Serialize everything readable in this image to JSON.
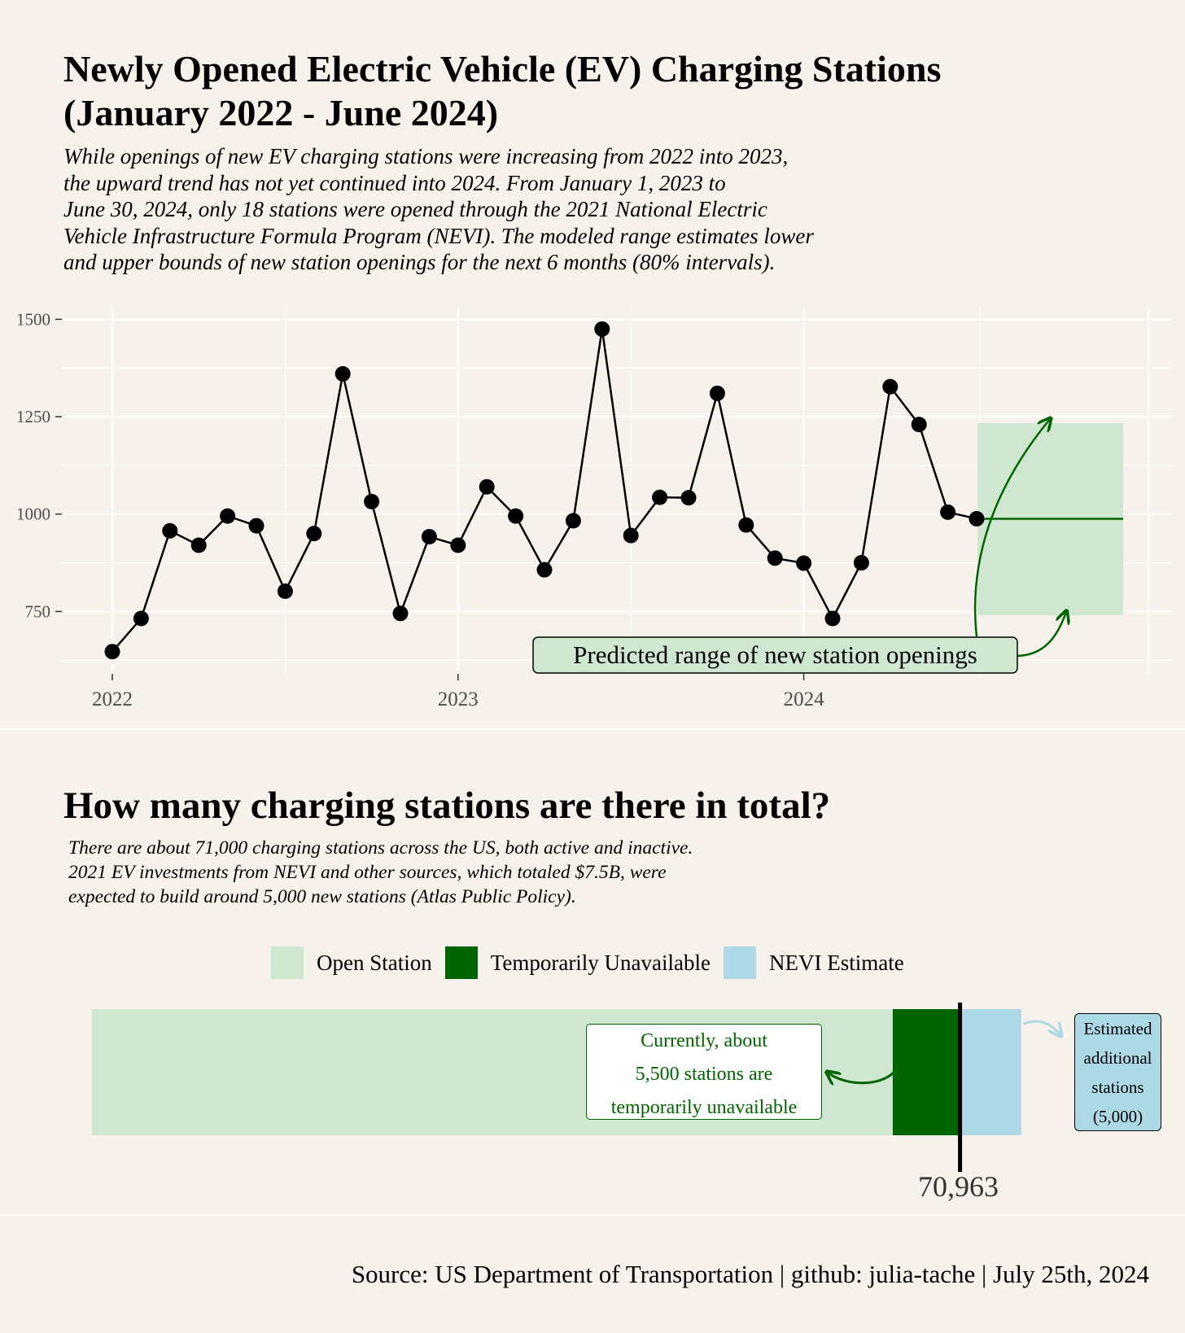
{
  "chart_title_lines": [
    "Newly Opened Electric Vehicle (EV) Charging Stations",
    "(January 2022 - June 2024)"
  ],
  "chart_subtitle_lines": [
    "While openings of new EV charging stations were increasing from 2022 into 2023,",
    "the upward trend has not yet continued into 2024. From January 1, 2023 to",
    "June 30, 2024, only 18 stations were opened through the 2021 National Electric",
    "Vehicle Infrastructure Formula Program (NEVI). The modeled range estimates lower",
    "and upper bounds of new station openings for the next 6 months (80% intervals)."
  ],
  "chart_data": [
    {
      "type": "line",
      "title": "Newly Opened Electric Vehicle (EV) Charging Stations (January 2022 - June 2024)",
      "xlabel": "",
      "ylabel": "",
      "x": [
        "2022-01",
        "2022-02",
        "2022-03",
        "2022-04",
        "2022-05",
        "2022-06",
        "2022-07",
        "2022-08",
        "2022-09",
        "2022-10",
        "2022-11",
        "2022-12",
        "2023-01",
        "2023-02",
        "2023-03",
        "2023-04",
        "2023-05",
        "2023-06",
        "2023-07",
        "2023-08",
        "2023-09",
        "2023-10",
        "2023-11",
        "2023-12",
        "2024-01",
        "2024-02",
        "2024-03",
        "2024-04",
        "2024-05",
        "2024-06",
        "2024-07"
      ],
      "series": [
        {
          "name": "New stations opened",
          "values": [
            647,
            732,
            957,
            920,
            995,
            970,
            802,
            950,
            1360,
            1032,
            745,
            942,
            920,
            1070,
            995,
            857,
            983,
            1475,
            945,
            1043,
            1042,
            1310,
            972,
            887,
            874,
            732,
            875,
            1327,
            1230,
            1005,
            988
          ]
        }
      ],
      "forecast": {
        "from": "2024-07",
        "to": "2024-12",
        "lower": 740,
        "upper": 1233,
        "mean": 988
      },
      "annotation": "Predicted range of new station openings",
      "ylim": [
        590,
        1530
      ],
      "yticks": [
        750,
        1000,
        1250,
        1500
      ],
      "xticks": [
        "2022",
        "2023",
        "2024"
      ],
      "grid": true
    },
    {
      "type": "bar",
      "title": "How many charging stations are there in total?",
      "orientation": "horizontal-stacked",
      "categories": [
        "Open Station",
        "Temporarily Unavailable",
        "NEVI Estimate"
      ],
      "values": [
        65463,
        5500,
        5000
      ],
      "total_label": "70,963",
      "xlim": [
        0,
        76000
      ],
      "colors": [
        "#cfe6d1",
        "#006400",
        "#add8e6"
      ],
      "legend_position": "top"
    }
  ],
  "bar_title": "How many charging stations are there in total?",
  "bar_subtitle_lines": [
    "There are about 71,000 charging stations across the US, both active and inactive.",
    "2021 EV investments from NEVI and other sources, which totaled $7.5B, were",
    "expected to build around 5,000 new stations (Atlas Public Policy)."
  ],
  "legend": [
    {
      "label": "Open Station",
      "color": "#cfe6d1"
    },
    {
      "label": "Temporarily Unavailable",
      "color": "#006400"
    },
    {
      "label": "NEVI Estimate",
      "color": "#add8e6"
    }
  ],
  "unavailable_callout_lines": [
    "Currently, about",
    "5,500 stations are",
    "temporarily unavailable"
  ],
  "nevi_callout_lines": [
    "Estimated",
    "additional",
    "stations",
    "(5,000)"
  ],
  "source": "Source: US Department of Transportation | github: julia-tache | July 25th, 2024"
}
